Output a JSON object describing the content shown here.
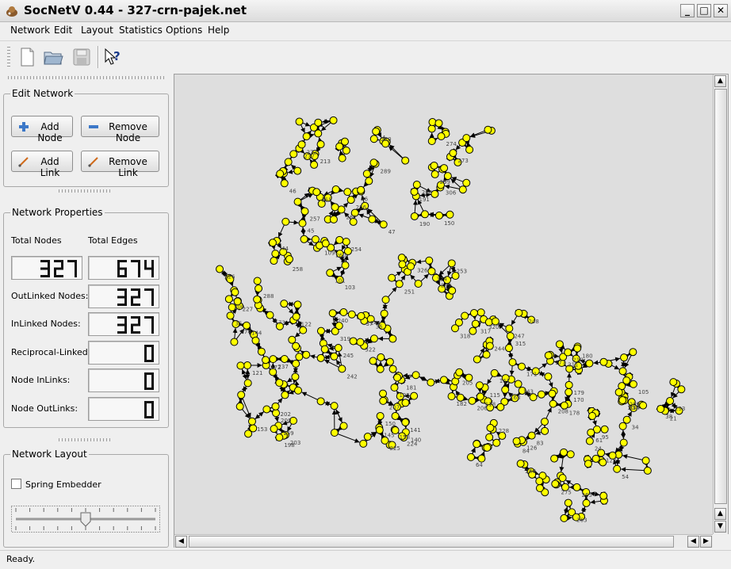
{
  "window": {
    "title": "SocNetV 0.44 - 327-crn-pajek.net",
    "minimize_glyph": "_",
    "maximize_glyph": "□",
    "close_glyph": "✕"
  },
  "menu": [
    "Network",
    "Edit",
    "Layout",
    "Statistics",
    "Options",
    "Help"
  ],
  "toolbar": {
    "icons": [
      "new-file-icon",
      "open-folder-icon",
      "save-disk-icon",
      "whats-this-icon"
    ]
  },
  "edit_network": {
    "title": "Edit Network",
    "add_node": "Add Node",
    "remove_node": "Remove Node",
    "add_link": "Add Link",
    "remove_link": "Remove Link"
  },
  "network_properties": {
    "title": "Network Properties",
    "total_nodes_label": "Total Nodes",
    "total_edges_label": "Total Edges",
    "total_nodes": "327",
    "total_edges": "674",
    "outlinked_label": "OutLinked Nodes:",
    "outlinked": "327",
    "inlinked_label": "InLinked Nodes:",
    "inlinked": "327",
    "reciprocal_label": "Reciprocal-Linked:",
    "reciprocal": "0",
    "node_inlinks_label": "Node InLinks:",
    "node_inlinks": "0",
    "node_outlinks_label": "Node OutLinks:",
    "node_outlinks": "0"
  },
  "network_layout": {
    "title": "Network Layout",
    "spring_embedder": "Spring Embedder",
    "spring_embedder_checked": false,
    "slider_value": 0.5
  },
  "graph": {
    "node_color": "#ffff00",
    "edge_color": "#000000",
    "background": "#dedede",
    "labels": [
      "76",
      "46",
      "47",
      "45",
      "44",
      "103",
      "109",
      "101",
      "326",
      "324",
      "320",
      "317",
      "318",
      "315",
      "319",
      "322",
      "36",
      "37",
      "35",
      "121",
      "122",
      "144",
      "143",
      "115",
      "118",
      "211",
      "210",
      "209",
      "208",
      "207",
      "206",
      "205",
      "203",
      "202",
      "153",
      "145",
      "150",
      "224",
      "225",
      "228",
      "126",
      "95",
      "127",
      "24",
      "21",
      "314",
      "293",
      "306",
      "298",
      "299",
      "300",
      "288",
      "289",
      "277",
      "272",
      "270",
      "273",
      "274",
      "275",
      "268",
      "265",
      "263",
      "262",
      "257",
      "256",
      "255",
      "254",
      "258",
      "260",
      "253",
      "251",
      "249",
      "248",
      "247",
      "244",
      "242",
      "241",
      "240",
      "245",
      "237",
      "172",
      "173",
      "174",
      "171",
      "170",
      "163",
      "161",
      "177",
      "178",
      "179",
      "180",
      "181",
      "182",
      "195",
      "200",
      "198",
      "159",
      "158",
      "140",
      "141",
      "84",
      "83",
      "64",
      "61",
      "34",
      "54",
      "38",
      "104",
      "105",
      "150",
      "190",
      "191",
      "227",
      "226",
      "213",
      "4"
    ]
  },
  "status": "Ready."
}
